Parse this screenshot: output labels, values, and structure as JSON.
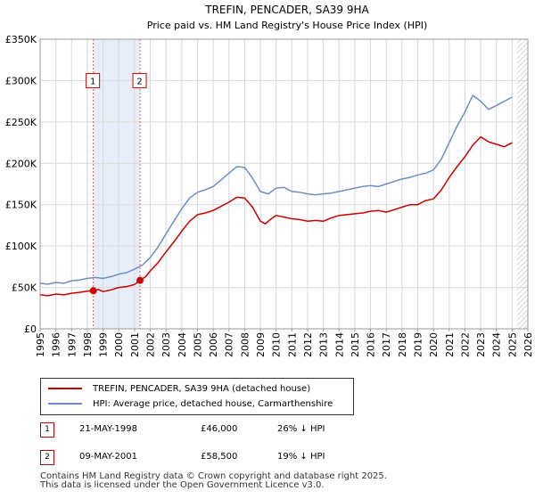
{
  "chart_data": {
    "type": "line",
    "title": "TREFIN, PENCADER, SA39 9HA",
    "subtitle": "Price paid vs. HM Land Registry's House Price Index (HPI)",
    "xlim": [
      1995,
      2026
    ],
    "ylim": [
      0,
      350000
    ],
    "y_ticks": [
      {
        "value": 0,
        "label": "£0"
      },
      {
        "value": 50000,
        "label": "£50K"
      },
      {
        "value": 100000,
        "label": "£100K"
      },
      {
        "value": 150000,
        "label": "£150K"
      },
      {
        "value": 200000,
        "label": "£200K"
      },
      {
        "value": 250000,
        "label": "£250K"
      },
      {
        "value": 300000,
        "label": "£300K"
      },
      {
        "value": 350000,
        "label": "£350K"
      }
    ],
    "x_ticks": [
      "1995",
      "1996",
      "1997",
      "1998",
      "1999",
      "2000",
      "2001",
      "2002",
      "2003",
      "2004",
      "2005",
      "2006",
      "2007",
      "2008",
      "2009",
      "2010",
      "2011",
      "2012",
      "2013",
      "2014",
      "2015",
      "2016",
      "2017",
      "2018",
      "2019",
      "2020",
      "2021",
      "2022",
      "2023",
      "2024",
      "2025",
      "2026"
    ],
    "grid": true,
    "shaded_ranges": [
      {
        "start": 1998.38,
        "end": 2001.35
      }
    ],
    "forecast_from": 2025.3,
    "series": [
      {
        "name": "TREFIN, PENCADER, SA39 9HA (detached house)",
        "color": "#cc0000",
        "x": [
          1995,
          1995.5,
          1996,
          1996.5,
          1997,
          1997.5,
          1998,
          1998.38,
          1998.7,
          1999,
          1999.5,
          2000,
          2000.5,
          2001,
          2001.35,
          2001.7,
          2002,
          2002.5,
          2003,
          2003.5,
          2004,
          2004.5,
          2005,
          2005.5,
          2006,
          2006.5,
          2007,
          2007.5,
          2008,
          2008.5,
          2009,
          2009.3,
          2009.7,
          2010,
          2010.5,
          2011,
          2011.5,
          2012,
          2012.5,
          2013,
          2013.5,
          2014,
          2014.5,
          2015,
          2015.5,
          2016,
          2016.5,
          2017,
          2017.5,
          2018,
          2018.5,
          2019,
          2019.5,
          2020,
          2020.5,
          2021,
          2021.5,
          2022,
          2022.5,
          2023,
          2023.5,
          2024,
          2024.5,
          2025
        ],
        "y": [
          41000,
          40000,
          42000,
          41000,
          43000,
          44000,
          45500,
          46000,
          47500,
          45000,
          47000,
          50000,
          51000,
          53500,
          58500,
          63000,
          70000,
          80000,
          93000,
          105000,
          118000,
          130000,
          138000,
          140000,
          143000,
          148000,
          153000,
          159000,
          158000,
          147000,
          130000,
          127000,
          133000,
          137000,
          135000,
          133000,
          132000,
          130000,
          131000,
          130000,
          134000,
          137000,
          138000,
          139000,
          140000,
          142000,
          143000,
          141000,
          144000,
          147000,
          150000,
          150000,
          155000,
          157000,
          168000,
          183000,
          196000,
          208000,
          222000,
          232000,
          226000,
          223000,
          220000,
          225000
        ]
      },
      {
        "name": "HPI: Average price, detached house, Carmarthenshire",
        "color": "#6a8fc8",
        "x": [
          1995,
          1995.5,
          1996,
          1996.5,
          1997,
          1997.5,
          1998,
          1998.5,
          1999,
          1999.5,
          2000,
          2000.5,
          2001,
          2001.5,
          2002,
          2002.5,
          2003,
          2003.5,
          2004,
          2004.5,
          2005,
          2005.5,
          2006,
          2006.5,
          2007,
          2007.5,
          2008,
          2008.5,
          2009,
          2009.5,
          2010,
          2010.5,
          2011,
          2011.5,
          2012,
          2012.5,
          2013,
          2013.5,
          2014,
          2014.5,
          2015,
          2015.5,
          2016,
          2016.5,
          2017,
          2017.5,
          2018,
          2018.5,
          2019,
          2019.5,
          2020,
          2020.5,
          2021,
          2021.5,
          2022,
          2022.5,
          2023,
          2023.5,
          2024,
          2024.5,
          2025
        ],
        "y": [
          55000,
          54000,
          56000,
          55000,
          58000,
          59000,
          61000,
          62000,
          61000,
          63000,
          66000,
          68000,
          72000,
          77000,
          86000,
          99000,
          115000,
          130000,
          145000,
          158000,
          165000,
          168000,
          172000,
          180000,
          188000,
          196000,
          195000,
          182000,
          166000,
          163000,
          170000,
          171000,
          166000,
          165000,
          163000,
          162000,
          163000,
          164000,
          166000,
          168000,
          170000,
          172000,
          173000,
          172000,
          175000,
          178000,
          181000,
          183000,
          186000,
          188000,
          192000,
          205000,
          225000,
          245000,
          262000,
          282000,
          275000,
          265000,
          270000,
          275000,
          280000
        ]
      }
    ],
    "markers": [
      {
        "label": "1",
        "x": 1998.38,
        "y": 46000
      },
      {
        "label": "2",
        "x": 2001.35,
        "y": 58500
      }
    ]
  },
  "legend": {
    "entries": [
      {
        "label": "TREFIN, PENCADER, SA39 9HA (detached house)",
        "color": "#cc0000"
      },
      {
        "label": "HPI: Average price, detached house, Carmarthenshire",
        "color": "#6a8fc8"
      }
    ]
  },
  "transactions": [
    {
      "num": "1",
      "date": "21-MAY-1998",
      "price": "£46,000",
      "diff": "26% ↓ HPI"
    },
    {
      "num": "2",
      "date": "09-MAY-2001",
      "price": "£58,500",
      "diff": "19% ↓ HPI"
    }
  ],
  "footer": {
    "line1": "Contains HM Land Registry data © Crown copyright and database right 2025.",
    "line2": "This data is licensed under the Open Government Licence v3.0."
  }
}
